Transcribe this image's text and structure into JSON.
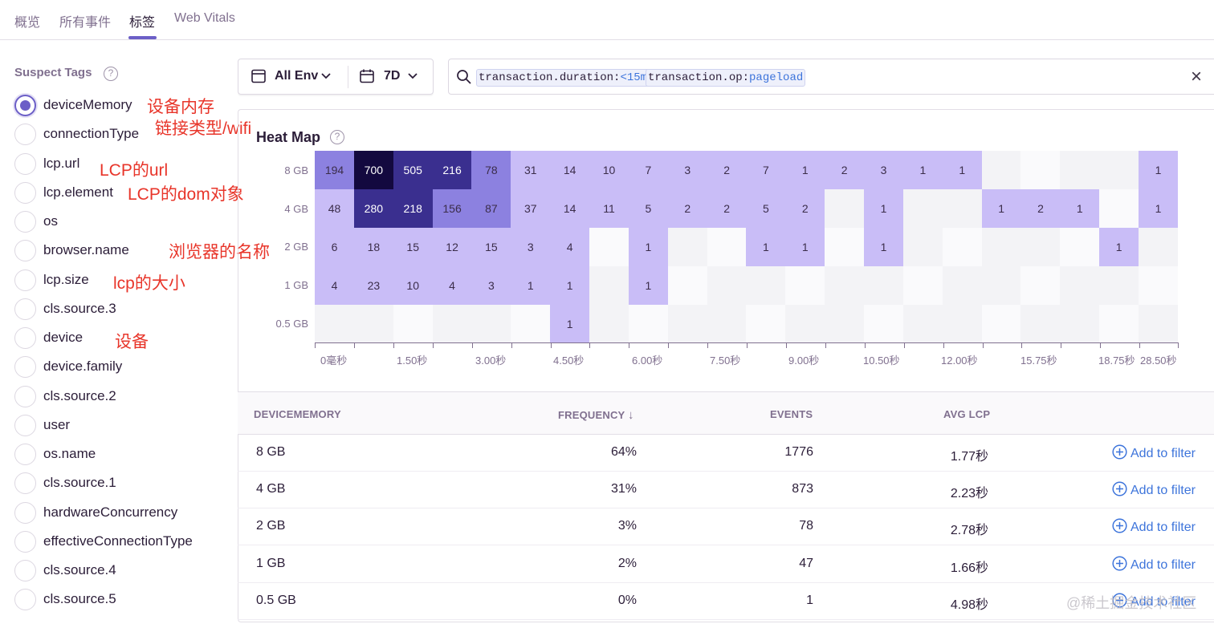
{
  "tabs": [
    {
      "label": "概览",
      "active": false
    },
    {
      "label": "所有事件",
      "active": false
    },
    {
      "label": "标签",
      "active": true
    },
    {
      "label": "Web Vitals",
      "active": false
    }
  ],
  "sidebar": {
    "title": "Suspect Tags",
    "help_glyph": "?",
    "tags": [
      {
        "label": "deviceMemory",
        "selected": true
      },
      {
        "label": "connectionType",
        "selected": false
      },
      {
        "label": "lcp.url",
        "selected": false
      },
      {
        "label": "lcp.element",
        "selected": false
      },
      {
        "label": "os",
        "selected": false
      },
      {
        "label": "browser.name",
        "selected": false
      },
      {
        "label": "lcp.size",
        "selected": false
      },
      {
        "label": "cls.source.3",
        "selected": false
      },
      {
        "label": "device",
        "selected": false
      },
      {
        "label": "device.family",
        "selected": false
      },
      {
        "label": "cls.source.2",
        "selected": false
      },
      {
        "label": "user",
        "selected": false
      },
      {
        "label": "os.name",
        "selected": false
      },
      {
        "label": "cls.source.1",
        "selected": false
      },
      {
        "label": "hardwareConcurrency",
        "selected": false
      },
      {
        "label": "effectiveConnectionType",
        "selected": false
      },
      {
        "label": "cls.source.4",
        "selected": false
      },
      {
        "label": "cls.source.5",
        "selected": false
      }
    ],
    "annotations": [
      "设备内存",
      "链接类型/wifi",
      "LCP的url",
      "LCP的dom对象",
      "浏览器的名称",
      "lcp的大小",
      "设备"
    ]
  },
  "filters": {
    "environment": "All Env",
    "period": "7D"
  },
  "search": {
    "tokens": [
      {
        "key": "transaction.duration:",
        "value": "<15m"
      },
      {
        "key": "transaction.op:",
        "value": "pageload"
      }
    ],
    "clear_glyph": "×"
  },
  "heatmap": {
    "title": "Heat Map",
    "help_glyph": "?",
    "colors": {
      "max": "#13093f",
      "high": "#3a2f8f",
      "mid": "#8c81e0",
      "low": "#c9bdf7",
      "empty": "#f3f3f6"
    },
    "rows": [
      {
        "label": "8 GB",
        "cells": [
          "194",
          "700",
          "505",
          "216",
          "78",
          "31",
          "14",
          "10",
          "7",
          "3",
          "2",
          "7",
          "1",
          "2",
          "3",
          "1",
          "1",
          "",
          "",
          "",
          "",
          "1"
        ]
      },
      {
        "label": "4 GB",
        "cells": [
          "48",
          "280",
          "218",
          "156",
          "87",
          "37",
          "14",
          "11",
          "5",
          "2",
          "2",
          "5",
          "2",
          "",
          "1",
          "",
          "",
          "1",
          "2",
          "1",
          "",
          "1"
        ]
      },
      {
        "label": "2 GB",
        "cells": [
          "6",
          "18",
          "15",
          "12",
          "15",
          "3",
          "4",
          "",
          "1",
          "",
          "",
          "1",
          "1",
          "",
          "1",
          "",
          "",
          "",
          "",
          "",
          "1",
          ""
        ]
      },
      {
        "label": "1 GB",
        "cells": [
          "4",
          "23",
          "10",
          "4",
          "3",
          "1",
          "1",
          "",
          "1",
          "",
          "",
          "",
          "",
          "",
          "",
          "",
          "",
          "",
          "",
          "",
          "",
          ""
        ]
      },
      {
        "label": "0.5 GB",
        "cells": [
          "",
          "",
          "",
          "",
          "",
          "",
          "1",
          "",
          "",
          "",
          "",
          "",
          "",
          "",
          "",
          "",
          "",
          "",
          "",
          "",
          "",
          ""
        ]
      }
    ],
    "x_labels": [
      "0毫秒",
      "1.50秒",
      "3.00秒",
      "4.50秒",
      "6.00秒",
      "7.50秒",
      "9.00秒",
      "10.50秒",
      "12.00秒",
      "15.75秒",
      "18.75秒",
      "28.50秒"
    ]
  },
  "table": {
    "headers": {
      "tag": "DEVICEMEMORY",
      "frequency": "FREQUENCY",
      "sort_glyph": "↓",
      "events": "EVENTS",
      "avg_lcp": "AVG LCP"
    },
    "rows": [
      {
        "value": "8 GB",
        "frequency": "64%",
        "events": "1776",
        "avg_lcp": "1.77秒",
        "action": "Add to filter"
      },
      {
        "value": "4 GB",
        "frequency": "31%",
        "events": "873",
        "avg_lcp": "2.23秒",
        "action": "Add to filter"
      },
      {
        "value": "2 GB",
        "frequency": "3%",
        "events": "78",
        "avg_lcp": "2.78秒",
        "action": "Add to filter"
      },
      {
        "value": "1 GB",
        "frequency": "2%",
        "events": "47",
        "avg_lcp": "1.66秒",
        "action": "Add to filter"
      },
      {
        "value": "0.5 GB",
        "frequency": "0%",
        "events": "1",
        "avg_lcp": "4.98秒",
        "action": "Add to filter"
      }
    ]
  },
  "watermark": "@稀土掘金技术社区"
}
